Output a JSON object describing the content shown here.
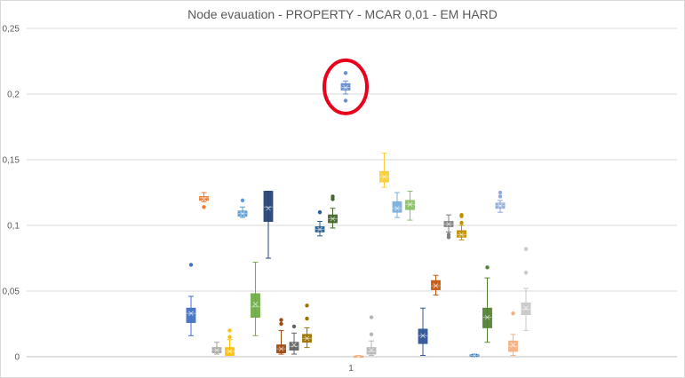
{
  "chart_data": {
    "type": "box",
    "title": "Node evauation - PROPERTY - MCAR 0,01 - EM HARD",
    "xlabel": "",
    "ylabel": "",
    "categories": [
      "1"
    ],
    "ylim": [
      0,
      0.25
    ],
    "yticks": [
      "0",
      "0,05",
      "0,1",
      "0,15",
      "0,2",
      "0,25"
    ],
    "grid": true,
    "legend": "none",
    "annotation": {
      "type": "ellipse",
      "color": "#e8001c",
      "around_series": 12
    },
    "series": [
      {
        "color": "#4472c4",
        "min": 0.016,
        "q1": 0.026,
        "median": 0.033,
        "mean": 0.033,
        "q3": 0.037,
        "max": 0.046,
        "outliers": [
          0.07
        ]
      },
      {
        "color": "#ed7d31",
        "min": 0.118,
        "q1": 0.119,
        "median": 0.121,
        "mean": 0.12,
        "q3": 0.122,
        "max": 0.125,
        "outliers": [
          0.114
        ]
      },
      {
        "color": "#a5a5a5",
        "min": 0.002,
        "q1": 0.003,
        "median": 0.005,
        "mean": 0.005,
        "q3": 0.007,
        "max": 0.011,
        "outliers": []
      },
      {
        "color": "#ffc000",
        "min": 0.001,
        "q1": 0.001,
        "median": 0.004,
        "mean": 0.004,
        "q3": 0.007,
        "max": 0.013,
        "outliers": [
          0.015,
          0.02
        ]
      },
      {
        "color": "#5b9bd5",
        "min": 0.106,
        "q1": 0.107,
        "median": 0.109,
        "mean": 0.109,
        "q3": 0.111,
        "max": 0.114,
        "outliers": [
          0.119
        ]
      },
      {
        "color": "#70ad47",
        "min": 0.016,
        "q1": 0.03,
        "median": 0.038,
        "mean": 0.04,
        "q3": 0.048,
        "max": 0.072,
        "outliers": []
      },
      {
        "color": "#264478",
        "min": 0.075,
        "q1": 0.103,
        "median": 0.114,
        "mean": 0.113,
        "q3": 0.126,
        "max": 0.126,
        "outliers": []
      },
      {
        "color": "#9e480e",
        "min": 0.002,
        "q1": 0.003,
        "median": 0.006,
        "mean": 0.006,
        "q3": 0.009,
        "max": 0.02,
        "outliers": [
          0.025,
          0.028
        ]
      },
      {
        "color": "#636363",
        "min": 0.002,
        "q1": 0.005,
        "median": 0.008,
        "mean": 0.009,
        "q3": 0.011,
        "max": 0.018,
        "outliers": [
          0.023
        ]
      },
      {
        "color": "#997300",
        "min": 0.007,
        "q1": 0.011,
        "median": 0.014,
        "mean": 0.014,
        "q3": 0.017,
        "max": 0.022,
        "outliers": [
          0.029,
          0.039
        ]
      },
      {
        "color": "#255e91",
        "min": 0.092,
        "q1": 0.095,
        "median": 0.097,
        "mean": 0.097,
        "q3": 0.099,
        "max": 0.103,
        "outliers": [
          0.11
        ]
      },
      {
        "color": "#43682b",
        "min": 0.098,
        "q1": 0.102,
        "median": 0.105,
        "mean": 0.105,
        "q3": 0.108,
        "max": 0.113,
        "outliers": [
          0.12,
          0.122
        ]
      },
      {
        "color": "#698ed0",
        "min": 0.2,
        "q1": 0.203,
        "median": 0.205,
        "mean": 0.205,
        "q3": 0.208,
        "max": 0.21,
        "outliers": [
          0.195,
          0.216
        ]
      },
      {
        "color": "#f1975a",
        "min": 0.0,
        "q1": 0.0,
        "median": 0.0,
        "mean": 0.0,
        "q3": 0.0005,
        "max": 0.001,
        "outliers": []
      },
      {
        "color": "#b7b7b7",
        "min": 0.001,
        "q1": 0.002,
        "median": 0.004,
        "mean": 0.005,
        "q3": 0.007,
        "max": 0.012,
        "outliers": [
          0.017,
          0.03
        ]
      },
      {
        "color": "#ffcd33",
        "min": 0.129,
        "q1": 0.133,
        "median": 0.137,
        "mean": 0.137,
        "q3": 0.141,
        "max": 0.155,
        "outliers": []
      },
      {
        "color": "#7cafdd",
        "min": 0.106,
        "q1": 0.11,
        "median": 0.113,
        "mean": 0.113,
        "q3": 0.118,
        "max": 0.125,
        "outliers": []
      },
      {
        "color": "#8cc168",
        "min": 0.104,
        "q1": 0.112,
        "median": 0.116,
        "mean": 0.116,
        "q3": 0.119,
        "max": 0.126,
        "outliers": []
      },
      {
        "color": "#2f5597",
        "min": 0.001,
        "q1": 0.01,
        "median": 0.016,
        "mean": 0.016,
        "q3": 0.021,
        "max": 0.037,
        "outliers": []
      },
      {
        "color": "#c55a11",
        "min": 0.047,
        "q1": 0.051,
        "median": 0.054,
        "mean": 0.054,
        "q3": 0.058,
        "max": 0.062,
        "outliers": []
      },
      {
        "color": "#7f7f7f",
        "min": 0.095,
        "q1": 0.099,
        "median": 0.101,
        "mean": 0.101,
        "q3": 0.103,
        "max": 0.108,
        "outliers": [
          0.091,
          0.093
        ]
      },
      {
        "color": "#bf9000",
        "min": 0.089,
        "q1": 0.091,
        "median": 0.093,
        "mean": 0.093,
        "q3": 0.096,
        "max": 0.1,
        "outliers": [
          0.102,
          0.107,
          0.108
        ]
      },
      {
        "color": "#2e75b6",
        "min": 0.0,
        "q1": 0.0005,
        "median": 0.001,
        "mean": 0.001,
        "q3": 0.0015,
        "max": 0.002,
        "outliers": []
      },
      {
        "color": "#548235",
        "min": 0.011,
        "q1": 0.022,
        "median": 0.03,
        "mean": 0.03,
        "q3": 0.037,
        "max": 0.06,
        "outliers": [
          0.068
        ]
      },
      {
        "color": "#8faadc",
        "min": 0.11,
        "q1": 0.113,
        "median": 0.115,
        "mean": 0.115,
        "q3": 0.117,
        "max": 0.119,
        "outliers": [
          0.122,
          0.125
        ]
      },
      {
        "color": "#f4b183",
        "min": 0.001,
        "q1": 0.004,
        "median": 0.008,
        "mean": 0.009,
        "q3": 0.012,
        "max": 0.017,
        "outliers": [
          0.033
        ]
      },
      {
        "color": "#c9c9c9",
        "min": 0.02,
        "q1": 0.032,
        "median": 0.036,
        "mean": 0.037,
        "q3": 0.041,
        "max": 0.052,
        "outliers": [
          0.064,
          0.082
        ]
      }
    ]
  }
}
